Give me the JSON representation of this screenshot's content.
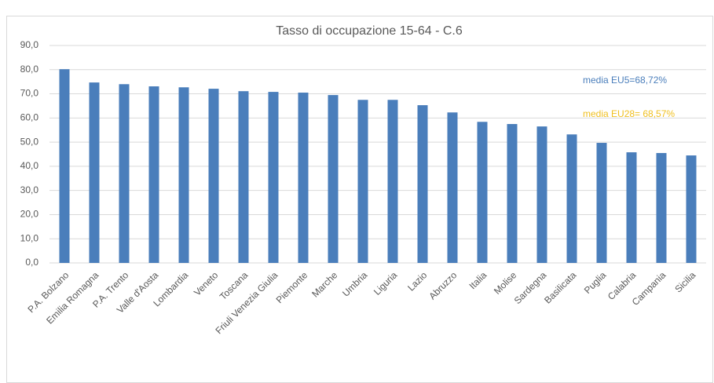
{
  "chart_data": {
    "type": "bar",
    "title": "Tasso di occupazione 15-64 - C.6",
    "categories": [
      "P.A. Bolzano",
      "Emilia Romagna",
      "P.A. Trento",
      "Valle d'Aosta",
      "Lombardia",
      "Veneto",
      "Toscana",
      "Friuli Venezia Giulia",
      "Piemonte",
      "Marche",
      "Umbria",
      "Liguria",
      "Lazio",
      "Abruzzo",
      "Italia",
      "Molise",
      "Sardegna",
      "Basilicata",
      "Puglia",
      "Calabria",
      "Campania",
      "Sicilia"
    ],
    "values": [
      80.2,
      74.7,
      74.0,
      73.1,
      72.7,
      72.1,
      71.1,
      70.8,
      70.5,
      69.5,
      67.5,
      67.5,
      65.3,
      62.3,
      58.4,
      57.5,
      56.5,
      53.2,
      49.7,
      45.8,
      45.5,
      44.5
    ],
    "color": "#4a7ebb",
    "ylim": [
      0,
      90
    ],
    "yticks": [
      {
        "value": 0,
        "label": "0,0"
      },
      {
        "value": 10,
        "label": "10,0"
      },
      {
        "value": 20,
        "label": "20,0"
      },
      {
        "value": 30,
        "label": "30,0"
      },
      {
        "value": 40,
        "label": "40,0"
      },
      {
        "value": 50,
        "label": "50,0"
      },
      {
        "value": 60,
        "label": "60,0"
      },
      {
        "value": 70,
        "label": "70,0"
      },
      {
        "value": 80,
        "label": "80,0"
      },
      {
        "value": 90,
        "label": "90,0"
      }
    ],
    "grid": true,
    "annotations": [
      {
        "text": "media EU5=68,72%",
        "color": "#4a7ebb"
      },
      {
        "text": "media EU28= 68,57%",
        "color": "#f0c020"
      }
    ]
  }
}
